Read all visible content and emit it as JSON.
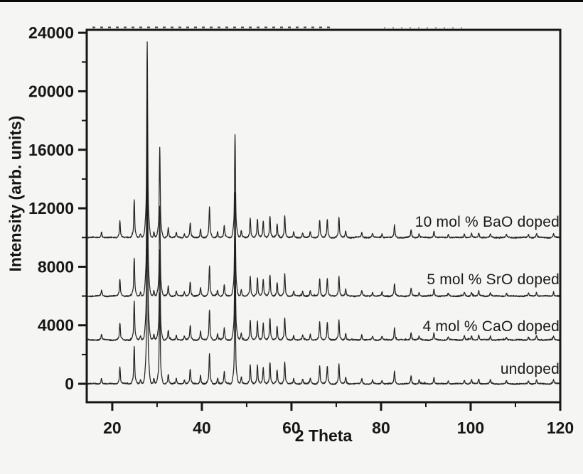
{
  "figure": {
    "background": "#f5f5f3",
    "ink_color": "#171717",
    "top_bar_color": "#0a0a0a"
  },
  "chart_data": {
    "type": "line",
    "title": "",
    "xlabel": "2 Theta",
    "ylabel": "Intensity (arb. units)",
    "xlim": [
      14.3,
      120
    ],
    "ylim": [
      -1260,
      24200
    ],
    "grid": false,
    "legend_position": "inline-right-of-each-trace",
    "x_major_ticks": [
      20,
      40,
      60,
      80,
      100,
      120
    ],
    "x_minor_ticks": [
      30,
      50,
      70,
      90,
      110
    ],
    "y_major_ticks": [
      0,
      4000,
      8000,
      12000,
      16000,
      20000,
      24000
    ],
    "y_minor_ticks": [
      2000,
      6000,
      10000,
      14000,
      18000,
      22000
    ],
    "series": [
      {
        "name": "undoped",
        "baseline": 0,
        "peak_scale": 13400
      },
      {
        "name": "4 mol % CaO doped",
        "baseline": 3000,
        "peak_scale": 13400
      },
      {
        "name": "5 mol % SrO doped",
        "baseline": 6000,
        "peak_scale": 13400
      },
      {
        "name": "10 mol % BaO doped",
        "baseline": 10000,
        "peak_scale": 13400
      }
    ],
    "peaks_two_theta_rel_intensity": [
      [
        17.6,
        3
      ],
      [
        21.7,
        8.5
      ],
      [
        24.9,
        19.5
      ],
      [
        26.3,
        2
      ],
      [
        27.8,
        100
      ],
      [
        29.3,
        3
      ],
      [
        30.6,
        46
      ],
      [
        32.5,
        5
      ],
      [
        34.3,
        2.5
      ],
      [
        36.1,
        2
      ],
      [
        37.4,
        7.5
      ],
      [
        39.7,
        4.4
      ],
      [
        41.7,
        15.4
      ],
      [
        43.5,
        3
      ],
      [
        45.0,
        6
      ],
      [
        47.4,
        53
      ],
      [
        48.8,
        3.5
      ],
      [
        50.8,
        10
      ],
      [
        52.4,
        9.5
      ],
      [
        53.7,
        8.5
      ],
      [
        55.2,
        11
      ],
      [
        56.8,
        7
      ],
      [
        58.5,
        11.3
      ],
      [
        60.5,
        2.5
      ],
      [
        62.5,
        2.5
      ],
      [
        64.2,
        3
      ],
      [
        66.3,
        9
      ],
      [
        68.0,
        9
      ],
      [
        70.6,
        10
      ],
      [
        72.1,
        3.5
      ],
      [
        75.7,
        2.7
      ],
      [
        78.1,
        2
      ],
      [
        80.2,
        2
      ],
      [
        83.0,
        6.3
      ],
      [
        86.7,
        4
      ],
      [
        88.5,
        2
      ],
      [
        91.8,
        3.4
      ],
      [
        95.0,
        1.5
      ],
      [
        98.6,
        2
      ],
      [
        100.2,
        2
      ],
      [
        101.8,
        2.5
      ],
      [
        104.4,
        2
      ],
      [
        108.0,
        1.5
      ],
      [
        112.9,
        1.5
      ],
      [
        114.7,
        2
      ],
      [
        118.5,
        2
      ]
    ],
    "noise_amplitude": 80
  }
}
